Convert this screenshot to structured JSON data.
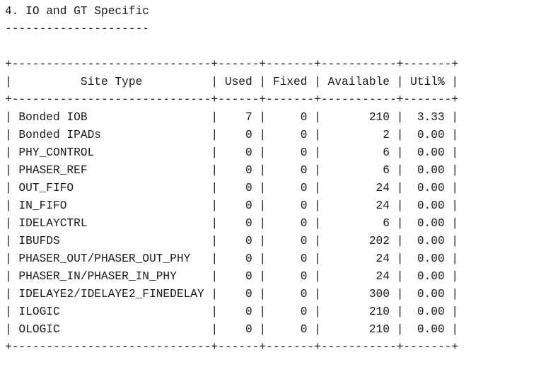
{
  "report": {
    "heading": "4. IO and GT Specific",
    "heading_underline": "---------------------",
    "border": "+-----------------------------+------+-------+-----------+-------+",
    "header_row": "|          Site Type          | Used | Fixed | Available | Util% |",
    "rows": [
      "| Bonded IOB                  |    7 |     0 |       210 |  3.33 |",
      "| Bonded IPADs                |    0 |     0 |         2 |  0.00 |",
      "| PHY_CONTROL                 |    0 |     0 |         6 |  0.00 |",
      "| PHASER_REF                  |    0 |     0 |         6 |  0.00 |",
      "| OUT_FIFO                    |    0 |     0 |        24 |  0.00 |",
      "| IN_FIFO                     |    0 |     0 |        24 |  0.00 |",
      "| IDELAYCTRL                  |    0 |     0 |         6 |  0.00 |",
      "| IBUFDS                      |    0 |     0 |       202 |  0.00 |",
      "| PHASER_OUT/PHASER_OUT_PHY   |    0 |     0 |        24 |  0.00 |",
      "| PHASER_IN/PHASER_IN_PHY     |    0 |     0 |        24 |  0.00 |",
      "| IDELAYE2/IDELAYE2_FINEDELAY |    0 |     0 |       300 |  0.00 |",
      "| ILOGIC                      |    0 |     0 |       210 |  0.00 |",
      "| OLOGIC                      |    0 |     0 |       210 |  0.00 |"
    ]
  },
  "chart_data": {
    "type": "table",
    "columns": [
      "Site Type",
      "Used",
      "Fixed",
      "Available",
      "Util%"
    ],
    "rows": [
      [
        "Bonded IOB",
        "7",
        "0",
        "210",
        "3.33"
      ],
      [
        "Bonded IPADs",
        "0",
        "0",
        "2",
        "0.00"
      ],
      [
        "PHY_CONTROL",
        "0",
        "0",
        "6",
        "0.00"
      ],
      [
        "PHASER_REF",
        "0",
        "0",
        "6",
        "0.00"
      ],
      [
        "OUT_FIFO",
        "0",
        "0",
        "24",
        "0.00"
      ],
      [
        "IN_FIFO",
        "0",
        "0",
        "24",
        "0.00"
      ],
      [
        "IDELAYCTRL",
        "0",
        "0",
        "6",
        "0.00"
      ],
      [
        "IBUFDS",
        "0",
        "0",
        "202",
        "0.00"
      ],
      [
        "PHASER_OUT/PHASER_OUT_PHY",
        "0",
        "0",
        "24",
        "0.00"
      ],
      [
        "PHASER_IN/PHASER_IN_PHY",
        "0",
        "0",
        "24",
        "0.00"
      ],
      [
        "IDELAYE2/IDELAYE2_FINEDELAY",
        "0",
        "0",
        "300",
        "0.00"
      ],
      [
        "ILOGIC",
        "0",
        "0",
        "210",
        "0.00"
      ],
      [
        "OLOGIC",
        "0",
        "0",
        "210",
        "0.00"
      ]
    ]
  }
}
